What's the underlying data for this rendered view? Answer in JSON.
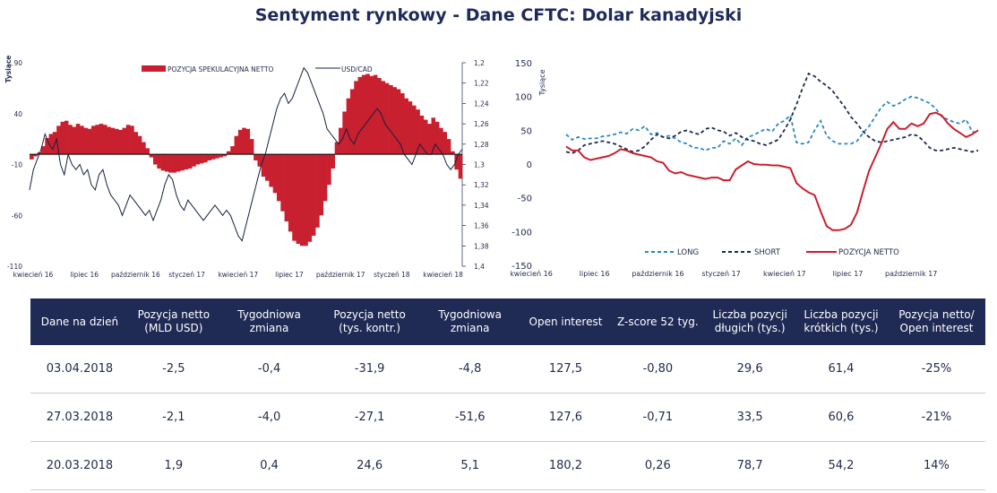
{
  "title": "Sentyment rynkowy - Dane CFTC:  Dolar kanadyjski",
  "colors": {
    "navy": "#1f2a55",
    "red": "#c8202f",
    "blue_dashed": "#2a88c8",
    "dark_dashed": "#1c2a4c"
  },
  "chart_data": [
    {
      "type": "bar+line",
      "left_unit": "Tysiące",
      "left_ticks": [
        "90",
        "40",
        "-10",
        "-60",
        "-110"
      ],
      "left_ylim": [
        -110,
        90
      ],
      "right_ticks": [
        "1,2",
        "1,22",
        "1,24",
        "1,26",
        "1,28",
        "1,3",
        "1,32",
        "1,34",
        "1,36",
        "1,38",
        "1,4"
      ],
      "right_ylim": [
        1.2,
        1.4
      ],
      "right_inverted": true,
      "x_ticks": [
        "kwiecień 16",
        "lipiec 16",
        "październik 16",
        "styczeń 17",
        "kwiecień 17",
        "lipiec 17",
        "październik 17",
        "styczeń 18",
        "kwiecień 18"
      ],
      "legend": {
        "bar": "POZYCJA SPEKULACYJNA NETTO",
        "line": "USD/CAD"
      },
      "bar_values": [
        -5,
        -2,
        2,
        8,
        16,
        20,
        22,
        28,
        32,
        33,
        29,
        27,
        30,
        28,
        26,
        25,
        28,
        29,
        30,
        29,
        27,
        26,
        25,
        24,
        26,
        29,
        28,
        22,
        18,
        12,
        6,
        -3,
        -10,
        -14,
        -16,
        -17,
        -18,
        -18,
        -17,
        -16,
        -15,
        -14,
        -12,
        -10,
        -9,
        -8,
        -6,
        -5,
        -4,
        -3,
        -2,
        3,
        8,
        18,
        24,
        26,
        25,
        15,
        -6,
        -12,
        -22,
        -26,
        -32,
        -38,
        -46,
        -56,
        -66,
        -76,
        -85,
        -88,
        -90,
        -90,
        -86,
        -80,
        -72,
        -60,
        -46,
        -30,
        -14,
        12,
        26,
        42,
        55,
        64,
        72,
        76,
        78,
        79,
        77,
        78,
        75,
        72,
        70,
        68,
        66,
        64,
        60,
        55,
        52,
        48,
        44,
        38,
        34,
        30,
        36,
        32,
        26,
        22,
        15,
        3,
        -15,
        -24
      ],
      "line_values": [
        1.325,
        1.305,
        1.295,
        1.285,
        1.27,
        1.28,
        1.285,
        1.275,
        1.3,
        1.31,
        1.29,
        1.3,
        1.305,
        1.3,
        1.31,
        1.305,
        1.32,
        1.325,
        1.31,
        1.305,
        1.32,
        1.33,
        1.335,
        1.34,
        1.35,
        1.34,
        1.33,
        1.335,
        1.34,
        1.345,
        1.35,
        1.345,
        1.355,
        1.345,
        1.335,
        1.32,
        1.31,
        1.315,
        1.33,
        1.34,
        1.345,
        1.335,
        1.34,
        1.345,
        1.35,
        1.355,
        1.35,
        1.345,
        1.34,
        1.345,
        1.35,
        1.345,
        1.35,
        1.36,
        1.37,
        1.375,
        1.36,
        1.345,
        1.33,
        1.315,
        1.3,
        1.29,
        1.275,
        1.26,
        1.245,
        1.235,
        1.23,
        1.24,
        1.235,
        1.225,
        1.215,
        1.205,
        1.21,
        1.22,
        1.23,
        1.24,
        1.25,
        1.265,
        1.27,
        1.275,
        1.28,
        1.275,
        1.265,
        1.275,
        1.28,
        1.27,
        1.265,
        1.26,
        1.255,
        1.25,
        1.245,
        1.25,
        1.26,
        1.265,
        1.27,
        1.275,
        1.28,
        1.29,
        1.295,
        1.3,
        1.29,
        1.28,
        1.285,
        1.29,
        1.29,
        1.28,
        1.285,
        1.29,
        1.3,
        1.305,
        1.3,
        1.29,
        1.285
      ]
    },
    {
      "type": "line",
      "y_unit": "Tysiące",
      "y_ticks": [
        "150",
        "100",
        "50",
        "0",
        "-50",
        "-100",
        "-150"
      ],
      "ylim": [
        -150,
        150
      ],
      "x_ticks": [
        "kwiecień 16",
        "lipiec 16",
        "październik 16",
        "styczeń 17",
        "kwiecień 17",
        "lipiec 17",
        "październik 17"
      ],
      "series": [
        {
          "name": "LONG",
          "style": "dashed",
          "color": "#2a88c8",
          "values": [
            44,
            36,
            40,
            37,
            38,
            38,
            41,
            42,
            44,
            47,
            45,
            52,
            50,
            56,
            44,
            46,
            40,
            42,
            38,
            32,
            30,
            24,
            24,
            20,
            24,
            24,
            34,
            30,
            38,
            28,
            40,
            43,
            48,
            52,
            48,
            60,
            64,
            72,
            32,
            30,
            32,
            50,
            64,
            42,
            34,
            30,
            30,
            30,
            34,
            46,
            56,
            70,
            84,
            92,
            86,
            90,
            96,
            100,
            98,
            94,
            90,
            82,
            70,
            66,
            62,
            60,
            66,
            48,
            46
          ]
        },
        {
          "name": "SHORT",
          "style": "dashed",
          "color": "#1c2a4c",
          "values": [
            18,
            16,
            20,
            28,
            30,
            32,
            34,
            32,
            30,
            26,
            22,
            18,
            20,
            26,
            36,
            44,
            40,
            38,
            42,
            48,
            50,
            46,
            44,
            52,
            54,
            50,
            48,
            42,
            46,
            40,
            36,
            34,
            30,
            28,
            32,
            36,
            50,
            66,
            88,
            112,
            134,
            130,
            122,
            116,
            108,
            96,
            84,
            70,
            60,
            48,
            40,
            34,
            32,
            34,
            36,
            38,
            40,
            44,
            42,
            34,
            24,
            20,
            20,
            22,
            24,
            22,
            20,
            18,
            20
          ]
        },
        {
          "name": "POZYCJA NETTO",
          "style": "solid",
          "color": "#c8202f",
          "values": [
            26,
            20,
            20,
            10,
            6,
            8,
            10,
            12,
            16,
            22,
            20,
            16,
            14,
            12,
            10,
            4,
            2,
            -10,
            -14,
            -12,
            -16,
            -18,
            -20,
            -22,
            -20,
            -20,
            -24,
            -24,
            -8,
            -2,
            4,
            0,
            -1,
            -1,
            -2,
            -2,
            -4,
            -6,
            -28,
            -36,
            -42,
            -46,
            -70,
            -92,
            -98,
            -98,
            -96,
            -90,
            -72,
            -40,
            -10,
            10,
            30,
            52,
            62,
            52,
            52,
            60,
            56,
            60,
            74,
            76,
            72,
            60,
            52,
            46,
            40,
            44,
            50
          ]
        }
      ]
    }
  ],
  "table": {
    "headers": [
      "Dane na dzień",
      "Pozycja netto (MLD USD)",
      "Tygodniowa zmiana",
      "Pozycja netto (tys. kontr.)",
      "Tygodniowa zmiana",
      "Open interest",
      "Z-score 52 tyg.",
      "Liczba pozycji długich (tys.)",
      "Liczba pozycji krótkich (tys.)",
      "Pozycja netto/ Open interest"
    ],
    "rows": [
      [
        "03.04.2018",
        "-2,5",
        "-0,4",
        "-31,9",
        "-4,8",
        "127,5",
        "-0,80",
        "29,6",
        "61,4",
        "-25%"
      ],
      [
        "27.03.2018",
        "-2,1",
        "-4,0",
        "-27,1",
        "-51,6",
        "127,6",
        "-0,71",
        "33,5",
        "60,6",
        "-21%"
      ],
      [
        "20.03.2018",
        "1,9",
        "0,4",
        "24,6",
        "5,1",
        "180,2",
        "0,26",
        "78,7",
        "54,2",
        "14%"
      ]
    ]
  }
}
